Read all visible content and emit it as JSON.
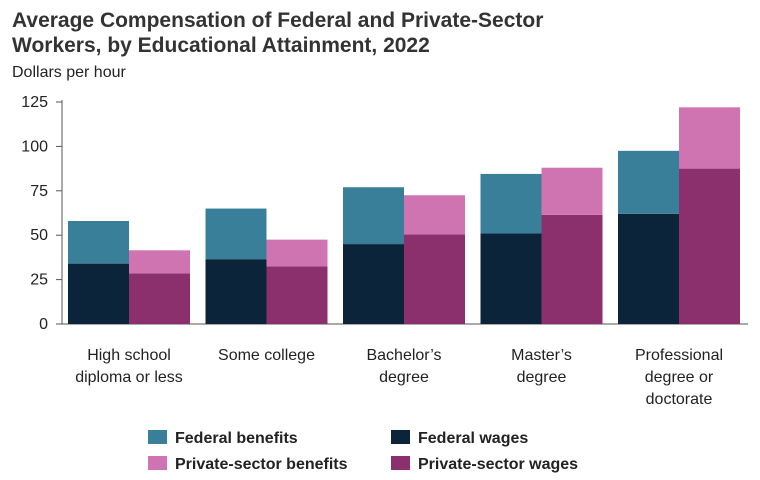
{
  "title_lines": [
    "Average Compensation of Federal and Private-Sector",
    "Workers, by Educational Attainment, 2022"
  ],
  "ylabel": "Dollars per hour",
  "chart_data": {
    "type": "bar",
    "stacked": true,
    "grouped": true,
    "title": "Average Compensation of Federal and Private-Sector Workers, by Educational Attainment, 2022",
    "ylabel": "Dollars per hour",
    "ylim": [
      0,
      125
    ],
    "yticks": [
      0,
      25,
      50,
      75,
      100,
      125
    ],
    "categories": [
      [
        "High school",
        "diploma or less"
      ],
      [
        "Some college"
      ],
      [
        "Bachelor’s",
        "degree"
      ],
      [
        "Master’s",
        "degree"
      ],
      [
        "Professional",
        "degree or",
        "doctorate"
      ]
    ],
    "groups": [
      {
        "sector": "Federal",
        "series": [
          {
            "name": "Federal wages",
            "color": "#0b2439",
            "values": [
              34,
              36.5,
              45,
              51,
              62
            ]
          },
          {
            "name": "Federal benefits",
            "color": "#3a7f9a",
            "values": [
              24,
              28.5,
              32,
              33.5,
              35.5
            ]
          }
        ]
      },
      {
        "sector": "Private",
        "series": [
          {
            "name": "Private-sector wages",
            "color": "#8b2f6d",
            "values": [
              28.5,
              32.5,
              50.5,
              61.5,
              87.5
            ]
          },
          {
            "name": "Private-sector benefits",
            "color": "#d074b1",
            "values": [
              13,
              15,
              22,
              26.5,
              34.5
            ]
          }
        ]
      }
    ],
    "legend": [
      {
        "label": "Federal benefits",
        "color": "#3a7f9a"
      },
      {
        "label": "Federal wages",
        "color": "#0b2439"
      },
      {
        "label": "Private-sector benefits",
        "color": "#d074b1"
      },
      {
        "label": "Private-sector wages",
        "color": "#8b2f6d"
      }
    ],
    "legend_position": "bottom",
    "grid": false
  }
}
